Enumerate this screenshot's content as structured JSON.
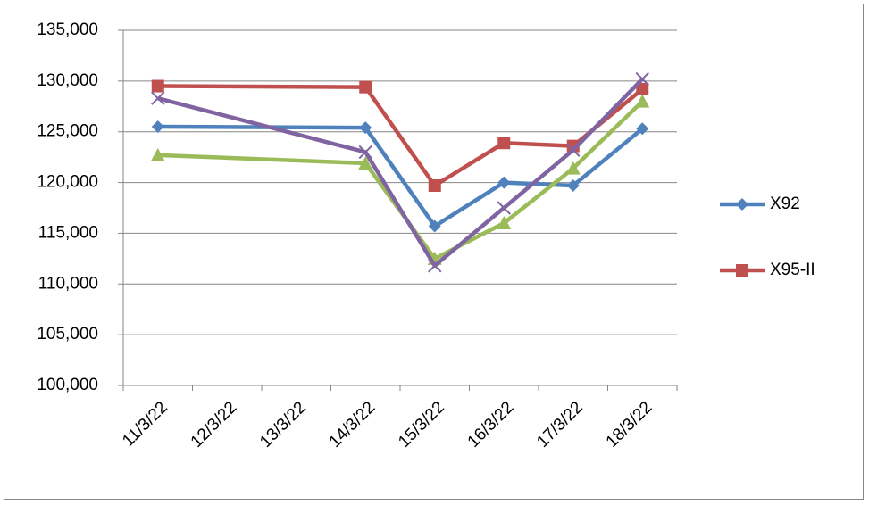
{
  "chart_data": {
    "type": "line",
    "categories": [
      "11/3/22",
      "12/3/22",
      "13/3/22",
      "14/3/22",
      "15/3/22",
      "16/3/22",
      "17/3/22",
      "18/3/22"
    ],
    "x": [
      "11/3/22",
      "14/3/22",
      "15/3/22",
      "16/3/22",
      "17/3/22",
      "18/3/22"
    ],
    "series": [
      {
        "name": "X92",
        "color": "#4f81bd",
        "marker": "diamond",
        "values": [
          125500,
          125400,
          115700,
          120000,
          119700,
          125300
        ]
      },
      {
        "name": "X95-II",
        "color": "#c0504d",
        "marker": "square",
        "values": [
          129500,
          129400,
          119700,
          123900,
          123600,
          129200
        ]
      },
      {
        "color": "#9bbb59",
        "marker": "triangle",
        "values": [
          122700,
          121900,
          112500,
          116000,
          121400,
          128000
        ]
      },
      {
        "color": "#8064a2",
        "marker": "x",
        "values": [
          128300,
          123000,
          111800,
          117500,
          123200,
          130200
        ]
      }
    ],
    "ylim": [
      100000,
      135000
    ],
    "yticks": [
      {
        "value": 100000,
        "label": "100,000"
      },
      {
        "value": 105000,
        "label": "105,000"
      },
      {
        "value": 110000,
        "label": "110,000"
      },
      {
        "value": 115000,
        "label": "115,000"
      },
      {
        "value": 120000,
        "label": "120,000"
      },
      {
        "value": 125000,
        "label": "125,000"
      },
      {
        "value": 130000,
        "label": "130,000"
      },
      {
        "value": 135000,
        "label": "135,000"
      }
    ],
    "grid": true,
    "legend": "right"
  }
}
